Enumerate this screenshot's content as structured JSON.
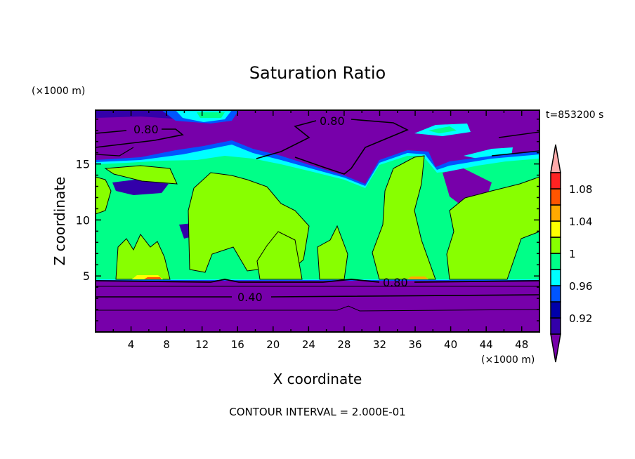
{
  "chart_data": {
    "type": "heatmap",
    "subtype": "filled-contour",
    "title": "Saturation Ratio",
    "xlabel": "X coordinate",
    "ylabel": "Z coordinate",
    "x_units": "(×1000 m)",
    "y_units": "(×1000 m)",
    "xlim": [
      0,
      50
    ],
    "ylim": [
      0,
      19.8
    ],
    "x_ticks": [
      4,
      8,
      12,
      16,
      20,
      24,
      28,
      32,
      36,
      40,
      44,
      48
    ],
    "y_ticks": [
      5,
      10,
      15
    ],
    "time_label": "t=853200 s",
    "footer": "CONTOUR INTERVAL = 2.000E-01",
    "contour_line_labels": [
      "0.80",
      "0.80",
      "0.80",
      "0.40"
    ],
    "colorbar": {
      "levels": [
        0.9,
        0.92,
        0.94,
        0.96,
        0.98,
        1.0,
        1.02,
        1.04,
        1.06,
        1.08,
        1.1
      ],
      "tick_labels": [
        "1.08",
        "1.04",
        "1",
        "0.96",
        "0.92"
      ],
      "tick_values": [
        1.08,
        1.04,
        1.0,
        0.96,
        0.92
      ],
      "colors": [
        "#3300aa",
        "#0000aa",
        "#0055ff",
        "#00ffff",
        "#00ff88",
        "#88ff00",
        "#ffff00",
        "#ffaa00",
        "#ff5500",
        "#ff2222"
      ],
      "under_color": "#7700aa",
      "over_color": "#ffaaaa"
    }
  }
}
